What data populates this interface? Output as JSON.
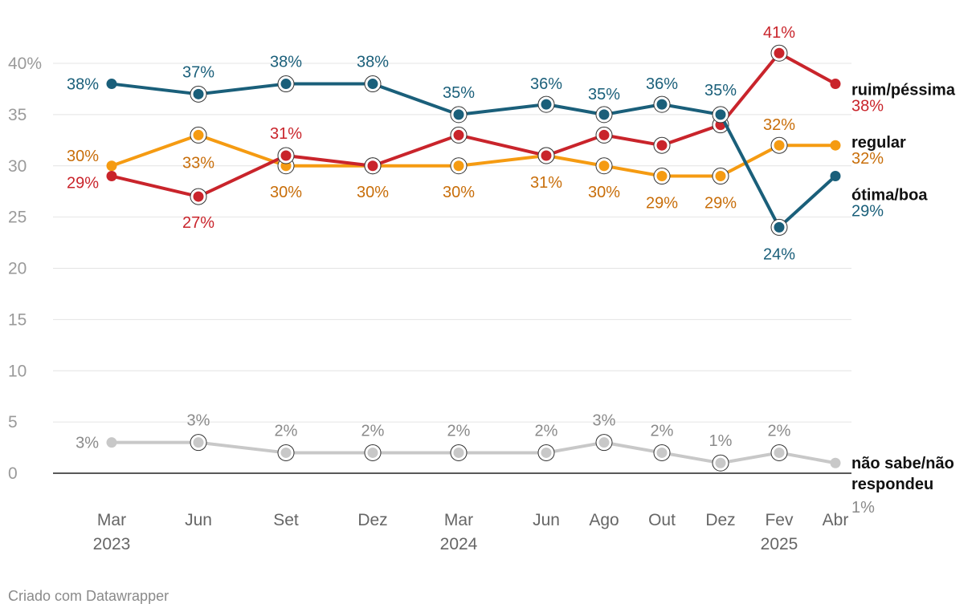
{
  "chart_data": {
    "type": "line",
    "title": "",
    "xlabel": "",
    "ylabel": "",
    "ylim": [
      0,
      40
    ],
    "yticks": [
      0,
      5,
      10,
      15,
      20,
      25,
      30,
      35,
      40
    ],
    "ytick_labels": [
      "0",
      "5",
      "10",
      "15",
      "20",
      "25",
      "30",
      "35",
      "40%"
    ],
    "x": [
      "Mar 2023",
      "Jun 2023",
      "Set 2023",
      "Dez 2023",
      "Mar 2024",
      "Jun 2024",
      "Ago 2024",
      "Out 2024",
      "Dez 2024",
      "Fev 2025",
      "Abr 2025"
    ],
    "x_month_labels": [
      "Mar",
      "Jun",
      "Set",
      "Dez",
      "Mar",
      "Jun",
      "Ago",
      "Out",
      "Dez",
      "Fev",
      "Abr"
    ],
    "x_year_labels": [
      "2023",
      "",
      "",
      "",
      "2024",
      "",
      "",
      "",
      "",
      "2025",
      ""
    ],
    "series": [
      {
        "name": "não sabe/não respondeu",
        "name_lines": [
          "não sabe/não",
          "respondeu"
        ],
        "color": "#c8c8c8",
        "label_color": "#8a8a8a",
        "values": [
          3,
          3,
          2,
          2,
          2,
          2,
          3,
          2,
          1,
          2,
          1
        ],
        "labels": [
          "3%",
          "3%",
          "2%",
          "2%",
          "2%",
          "2%",
          "3%",
          "2%",
          "1%",
          "2%",
          "1%"
        ]
      },
      {
        "name": "regular",
        "name_lines": [
          "regular"
        ],
        "color": "#f59b12",
        "label_color": "#c86e0a",
        "values": [
          30,
          33,
          30,
          30,
          30,
          31,
          30,
          29,
          29,
          32,
          32
        ],
        "labels": [
          "30%",
          "33%",
          "30%",
          "30%",
          "30%",
          "31%",
          "30%",
          "29%",
          "29%",
          "32%",
          "32%"
        ]
      },
      {
        "name": "ruim/péssima",
        "name_lines": [
          "ruim/péssima"
        ],
        "color": "#c9242b",
        "label_color": "#c9242b",
        "values": [
          29,
          27,
          31,
          30,
          33,
          31,
          33,
          32,
          34,
          41,
          38
        ],
        "labels": [
          "29%",
          "27%",
          "31%",
          "",
          "",
          "",
          "",
          "",
          "",
          "41%",
          "38%"
        ]
      },
      {
        "name": "ótima/boa",
        "name_lines": [
          "ótima/boa"
        ],
        "color": "#1a5f7a",
        "label_color": "#1a5f7a",
        "values": [
          38,
          37,
          38,
          38,
          35,
          36,
          35,
          36,
          35,
          24,
          29
        ],
        "labels": [
          "38%",
          "37%",
          "38%",
          "38%",
          "35%",
          "36%",
          "35%",
          "36%",
          "35%",
          "24%",
          "29%"
        ]
      }
    ]
  },
  "footer": {
    "credit": "Criado com Datawrapper"
  }
}
